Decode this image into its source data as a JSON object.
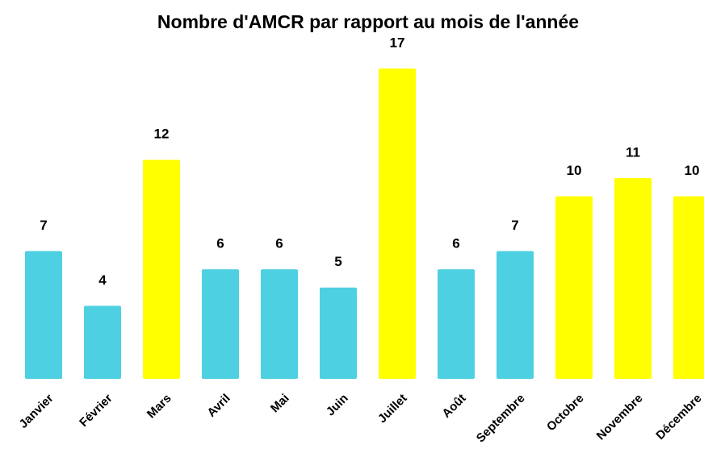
{
  "chart_data": {
    "type": "bar",
    "title": "Nombre d'AMCR par rapport au mois de l'année",
    "categories": [
      "Janvier",
      "Février",
      "Mars",
      "Avril",
      "Mai",
      "Juin",
      "Juillet",
      "Août",
      "Septembre",
      "Octobre",
      "Novembre",
      "Décembre"
    ],
    "values": [
      7,
      4,
      12,
      6,
      6,
      5,
      17,
      6,
      7,
      10,
      11,
      10
    ],
    "colors": [
      "#4dd0e1",
      "#4dd0e1",
      "#ffff00",
      "#4dd0e1",
      "#4dd0e1",
      "#4dd0e1",
      "#ffff00",
      "#4dd0e1",
      "#4dd0e1",
      "#ffff00",
      "#ffff00",
      "#ffff00"
    ],
    "ylim": [
      0,
      17
    ]
  }
}
